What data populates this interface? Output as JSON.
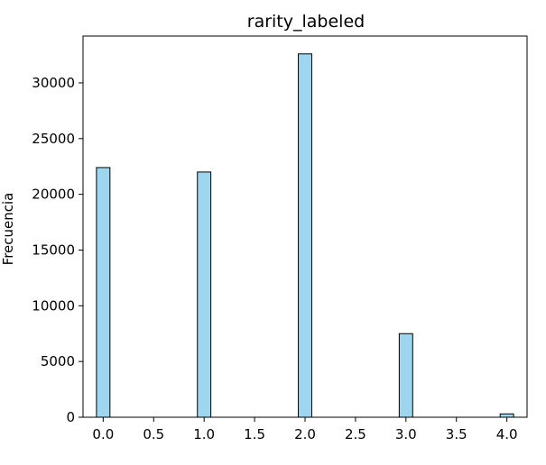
{
  "chart_data": {
    "type": "bar",
    "title": "rarity_labeled",
    "xlabel": "",
    "ylabel": "Frecuencia",
    "x": [
      0,
      1,
      2,
      3,
      4
    ],
    "values": [
      22400,
      22000,
      32600,
      7500,
      300
    ],
    "xlim": [
      -0.2,
      4.2
    ],
    "ylim": [
      0,
      34200
    ],
    "x_ticks": [
      "0.0",
      "0.5",
      "1.0",
      "1.5",
      "2.0",
      "2.5",
      "3.0",
      "3.5",
      "4.0"
    ],
    "x_tick_values": [
      0,
      0.5,
      1,
      1.5,
      2,
      2.5,
      3,
      3.5,
      4
    ],
    "y_ticks": [
      "0",
      "5000",
      "10000",
      "15000",
      "20000",
      "25000",
      "30000"
    ],
    "y_tick_values": [
      0,
      5000,
      10000,
      15000,
      20000,
      25000,
      30000
    ],
    "bar_width": 0.1333,
    "grid": false,
    "colors": {
      "bar_fill": "#9fd6ef",
      "bar_edge": "#000000",
      "axis": "#000000"
    }
  }
}
